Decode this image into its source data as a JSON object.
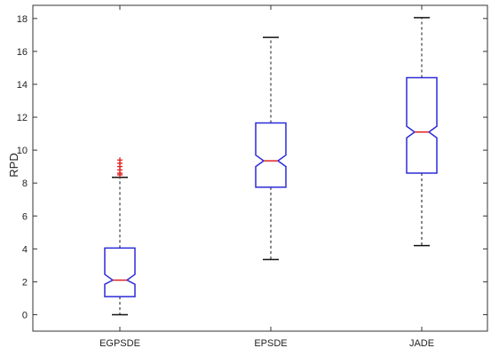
{
  "chart_data": {
    "type": "box",
    "notched": true,
    "title": "",
    "xlabel": "",
    "ylabel": "RPD",
    "ylim": [
      -1,
      18.8
    ],
    "yticks": [
      0,
      2,
      4,
      6,
      8,
      10,
      12,
      14,
      16,
      18
    ],
    "ytick_labels": [
      "0",
      "2",
      "4",
      "6",
      "8",
      "10",
      "12",
      "14",
      "16",
      "18"
    ],
    "categories": [
      "EGPSDE",
      "EPSDE",
      "JADE"
    ],
    "grid": false,
    "colors": {
      "box": "#2b2bd9",
      "median": "#e02020",
      "whisker": "#111111",
      "outlier": "#e02020",
      "axis": "#333333"
    },
    "boxes": [
      {
        "name": "EGPSDE",
        "whisker_low": 0.0,
        "q1": 1.1,
        "median": 2.1,
        "q3": 4.05,
        "whisker_high": 8.35,
        "notch_low": 1.85,
        "notch_high": 2.45,
        "outliers": [
          8.5,
          8.6,
          8.8,
          9.0,
          9.2,
          9.4
        ]
      },
      {
        "name": "EPSDE",
        "whisker_low": 3.35,
        "q1": 7.75,
        "median": 9.35,
        "q3": 11.65,
        "whisker_high": 16.85,
        "notch_low": 9.0,
        "notch_high": 9.7,
        "outliers": []
      },
      {
        "name": "JADE",
        "whisker_low": 4.2,
        "q1": 8.6,
        "median": 11.1,
        "q3": 14.4,
        "whisker_high": 18.05,
        "notch_low": 10.75,
        "notch_high": 11.45,
        "outliers": []
      }
    ]
  }
}
